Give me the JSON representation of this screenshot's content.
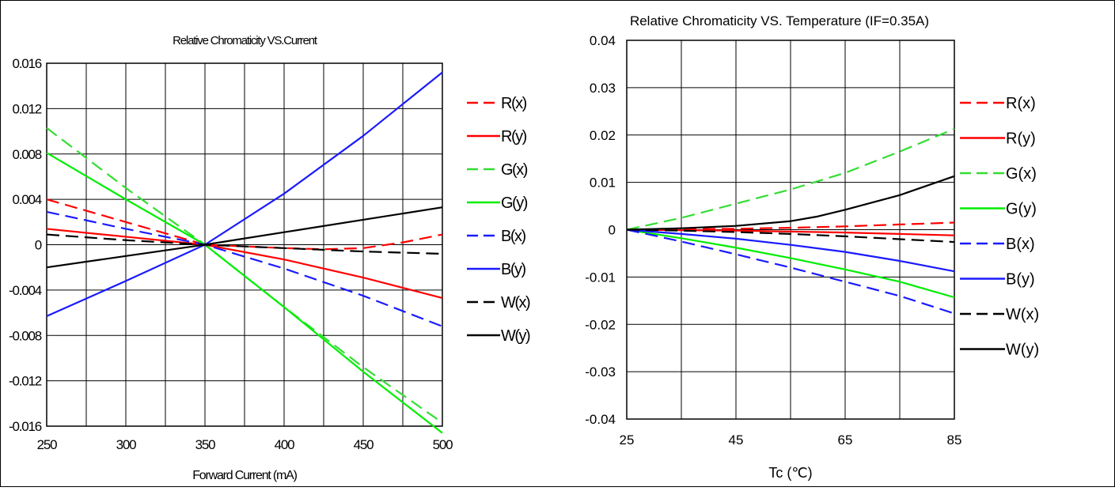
{
  "chart_data": [
    {
      "type": "line",
      "title": "Relative Chromaticity VS.Current",
      "xlabel": "Forward Current (mA)",
      "ylabel": "",
      "xlim": [
        250,
        500
      ],
      "ylim": [
        -0.016,
        0.016
      ],
      "x_ticks": [
        "250",
        "300",
        "350",
        "400",
        "450",
        "500"
      ],
      "y_ticks": [
        "0.016",
        "0.012",
        "0.008",
        "0.004",
        "0",
        "-0.004",
        "-0.008",
        "-0.012",
        "-0.016"
      ],
      "grid": true,
      "legend_position": "right",
      "series": [
        {
          "name": "R(x)",
          "color": "#ff0000",
          "dashed": true,
          "x": [
            250,
            300,
            350,
            400,
            425,
            450,
            475,
            500
          ],
          "y": [
            0.004,
            0.002,
            0,
            -0.0003,
            -0.0004,
            -0.0003,
            0.0002,
            0.0009
          ]
        },
        {
          "name": "R(y)",
          "color": "#ff0000",
          "dashed": false,
          "x": [
            250,
            300,
            350,
            400,
            450,
            500
          ],
          "y": [
            0.0014,
            0.0007,
            0,
            -0.0013,
            -0.0029,
            -0.0047
          ]
        },
        {
          "name": "G(x)",
          "color": "#33dd33",
          "dashed": true,
          "x": [
            250,
            300,
            350,
            400,
            450,
            500
          ],
          "y": [
            0.0103,
            0.005,
            0,
            -0.0055,
            -0.0108,
            -0.0157
          ]
        },
        {
          "name": "G(y)",
          "color": "#00ee00",
          "dashed": false,
          "x": [
            250,
            300,
            350,
            400,
            450,
            500
          ],
          "y": [
            0.0081,
            0.004,
            0,
            -0.0055,
            -0.0112,
            -0.0166
          ]
        },
        {
          "name": "B(x)",
          "color": "#1a1aff",
          "dashed": true,
          "x": [
            250,
            300,
            350,
            400,
            450,
            500
          ],
          "y": [
            0.0029,
            0.0014,
            0,
            -0.0021,
            -0.0045,
            -0.0072
          ]
        },
        {
          "name": "B(y)",
          "color": "#1a1aff",
          "dashed": false,
          "x": [
            250,
            300,
            350,
            400,
            450,
            500
          ],
          "y": [
            -0.0063,
            -0.0032,
            0,
            0.0045,
            0.0096,
            0.0152
          ]
        },
        {
          "name": "W(x)",
          "color": "#000000",
          "dashed": true,
          "x": [
            250,
            300,
            350,
            400,
            450,
            500
          ],
          "y": [
            0.0009,
            0.0004,
            0,
            -0.0003,
            -0.0006,
            -0.0008
          ]
        },
        {
          "name": "W(y)",
          "color": "#000000",
          "dashed": false,
          "x": [
            250,
            300,
            350,
            400,
            450,
            500
          ],
          "y": [
            -0.002,
            -0.001,
            0,
            0.0011,
            0.0022,
            0.0033
          ]
        }
      ]
    },
    {
      "type": "line",
      "title": "Relative Chromaticity VS. Temperature (IF=0.35A)",
      "xlabel": "Tc (℃)",
      "ylabel": "",
      "xlim": [
        25,
        85
      ],
      "ylim": [
        -0.04,
        0.04
      ],
      "x_ticks": [
        "25",
        "45",
        "65",
        "85"
      ],
      "y_ticks": [
        "0.04",
        "0.03",
        "0.02",
        "0.01",
        "0",
        "-0.01",
        "-0.02",
        "-0.03",
        "-0.04"
      ],
      "grid": true,
      "legend_position": "right",
      "series": [
        {
          "name": "R(x)",
          "color": "#ff0000",
          "dashed": true,
          "x": [
            25,
            35,
            45,
            55,
            65,
            75,
            85
          ],
          "y": [
            0,
            0.0001,
            0.0002,
            0.0004,
            0.0007,
            0.0011,
            0.0015
          ]
        },
        {
          "name": "R(y)",
          "color": "#ff0000",
          "dashed": false,
          "x": [
            25,
            35,
            45,
            55,
            65,
            75,
            85
          ],
          "y": [
            0,
            -0.0001,
            -0.0002,
            -0.0004,
            -0.0006,
            -0.0009,
            -0.0012
          ]
        },
        {
          "name": "G(x)",
          "color": "#33dd33",
          "dashed": true,
          "x": [
            25,
            35,
            45,
            55,
            65,
            75,
            85
          ],
          "y": [
            0,
            0.0025,
            0.0055,
            0.0085,
            0.012,
            0.0165,
            0.0213
          ]
        },
        {
          "name": "G(y)",
          "color": "#00ee00",
          "dashed": false,
          "x": [
            25,
            35,
            45,
            55,
            65,
            75,
            85
          ],
          "y": [
            0,
            -0.0018,
            -0.0038,
            -0.006,
            -0.0084,
            -0.011,
            -0.0143
          ]
        },
        {
          "name": "B(x)",
          "color": "#1a1aff",
          "dashed": true,
          "x": [
            25,
            35,
            45,
            55,
            65,
            75,
            85
          ],
          "y": [
            0,
            -0.0025,
            -0.0052,
            -0.008,
            -0.011,
            -0.014,
            -0.0177
          ]
        },
        {
          "name": "B(y)",
          "color": "#1a1aff",
          "dashed": false,
          "x": [
            25,
            35,
            45,
            55,
            65,
            75,
            85
          ],
          "y": [
            0,
            -0.0009,
            -0.0019,
            -0.0032,
            -0.0047,
            -0.0066,
            -0.0088
          ]
        },
        {
          "name": "W(x)",
          "color": "#000000",
          "dashed": true,
          "x": [
            25,
            35,
            45,
            55,
            65,
            75,
            85
          ],
          "y": [
            0,
            -0.0002,
            -0.0005,
            -0.0009,
            -0.0014,
            -0.002,
            -0.0026
          ]
        },
        {
          "name": "W(y)",
          "color": "#000000",
          "dashed": false,
          "x": [
            25,
            35,
            45,
            55,
            60,
            65,
            75,
            85
          ],
          "y": [
            0,
            0.0003,
            0.0008,
            0.0018,
            0.0028,
            0.0042,
            0.0073,
            0.0113
          ]
        }
      ]
    }
  ]
}
